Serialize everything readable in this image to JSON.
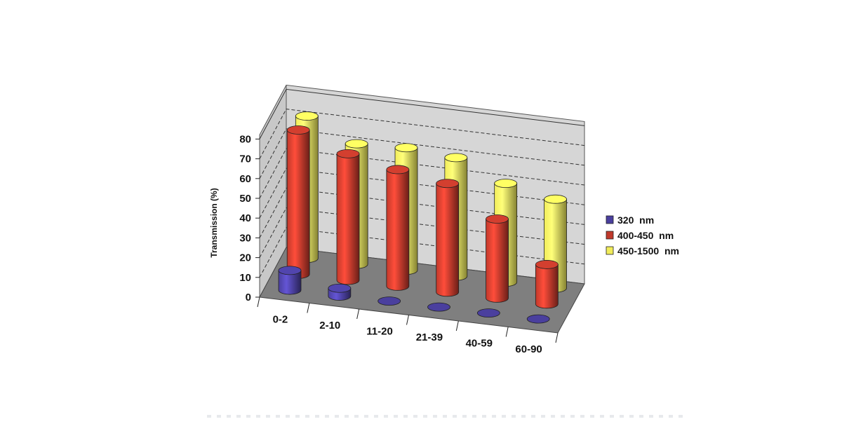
{
  "chart_data": {
    "type": "bar",
    "title": "",
    "xlabel": "",
    "ylabel": "Transmission (%)",
    "ylim": [
      0,
      80
    ],
    "yticks": [
      0,
      10,
      20,
      30,
      40,
      50,
      60,
      70,
      80
    ],
    "grid": true,
    "legend_position": "right",
    "three_d": true,
    "categories": [
      "0-2",
      "2-10",
      "11-20",
      "21-39",
      "40-59",
      "60-90"
    ],
    "series": [
      {
        "name": "320  nm",
        "color": "#4a3f9e",
        "values": [
          10,
          4,
          0.5,
          0.5,
          0.5,
          0.5
        ]
      },
      {
        "name": "400-450  nm",
        "color": "#c0392b",
        "values": [
          73,
          64,
          59,
          55,
          40,
          20
        ]
      },
      {
        "name": "450-1500  nm",
        "color": "#f1ec5a",
        "values": [
          72,
          61,
          62,
          60,
          50,
          45
        ]
      }
    ]
  }
}
